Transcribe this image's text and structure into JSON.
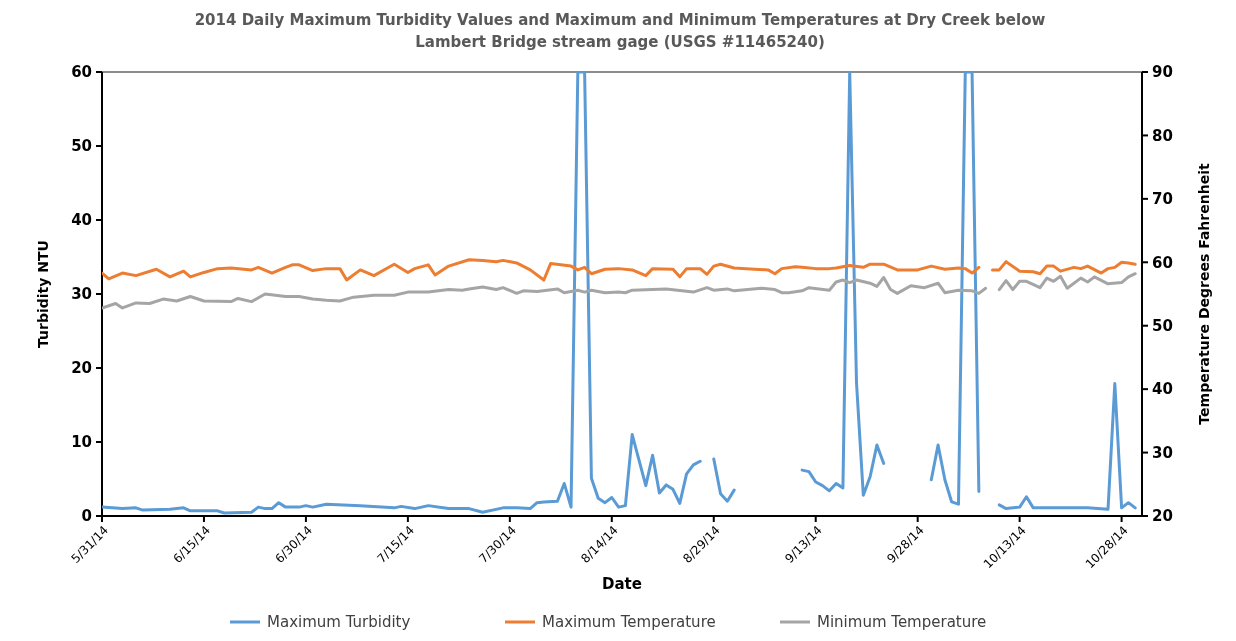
{
  "chart_data": {
    "type": "line",
    "title": "2014 Daily Maximum Turbidity Values and Maximum and Minimum Temperatures at Dry Creek below Lambert Bridge stream gage (USGS #11465240)",
    "xlabel": "Date",
    "ylabel": "Turbidity NTU",
    "y2label": "Temperature Degrees Fahrenheit",
    "xlim": [
      "2014-05-31",
      "2014-10-31"
    ],
    "xticks": [
      {
        "value": "2014-05-31",
        "label": "5/31/14"
      },
      {
        "value": "2014-06-15",
        "label": "6/15/14"
      },
      {
        "value": "2014-06-30",
        "label": "6/30/14"
      },
      {
        "value": "2014-07-15",
        "label": "7/15/14"
      },
      {
        "value": "2014-07-30",
        "label": "7/30/14"
      },
      {
        "value": "2014-08-14",
        "label": "8/14/14"
      },
      {
        "value": "2014-08-29",
        "label": "8/29/14"
      },
      {
        "value": "2014-09-13",
        "label": "9/13/14"
      },
      {
        "value": "2014-09-28",
        "label": "9/28/14"
      },
      {
        "value": "2014-10-13",
        "label": "10/13/14"
      },
      {
        "value": "2014-10-28",
        "label": "10/28/14"
      }
    ],
    "ylim": [
      0,
      60
    ],
    "yticks": [
      0,
      10,
      20,
      30,
      40,
      50,
      60
    ],
    "y2lim": [
      20,
      90
    ],
    "y2ticks": [
      20,
      30,
      40,
      50,
      60,
      70,
      80,
      90
    ],
    "legend": "bottom",
    "series": [
      {
        "name": "Maximum Turbidity",
        "color": "#5b9bd5",
        "x": [
          "2014-05-31",
          "2014-06-03",
          "2014-06-05",
          "2014-06-06",
          "2014-06-10",
          "2014-06-12",
          "2014-06-13",
          "2014-06-17",
          "2014-06-18",
          "2014-06-22",
          "2014-06-23",
          "2014-06-24",
          "2014-06-25",
          "2014-06-26",
          "2014-06-27",
          "2014-06-29",
          "2014-06-30",
          "2014-07-01",
          "2014-07-03",
          "2014-07-08",
          "2014-07-13",
          "2014-07-14",
          "2014-07-16",
          "2014-07-18",
          "2014-07-21",
          "2014-07-24",
          "2014-07-26",
          "2014-07-29",
          "2014-07-31",
          "2014-08-02",
          "2014-08-03",
          "2014-08-04",
          "2014-08-06",
          "2014-08-07",
          "2014-08-08",
          "2014-08-09",
          "2014-08-10",
          "2014-08-11",
          "2014-08-12",
          "2014-08-13",
          "2014-08-14",
          "2014-08-15",
          "2014-08-16",
          "2014-08-17",
          "2014-08-19",
          "2014-08-20",
          "2014-08-21",
          "2014-08-22",
          "2014-08-23",
          "2014-08-24",
          "2014-08-25",
          "2014-08-26",
          "2014-08-27",
          "2014-08-28",
          "2014-08-29",
          "2014-08-30",
          "2014-08-31",
          "2014-09-01",
          "2014-09-02",
          "2014-09-11",
          "2014-09-12",
          "2014-09-13",
          "2014-09-14",
          "2014-09-15",
          "2014-09-16",
          "2014-09-17",
          "2014-09-18",
          "2014-09-19",
          "2014-09-20",
          "2014-09-21",
          "2014-09-22",
          "2014-09-23",
          "2014-09-24",
          "2014-09-30",
          "2014-10-01",
          "2014-10-02",
          "2014-10-03",
          "2014-10-04",
          "2014-10-05",
          "2014-10-06",
          "2014-10-07",
          "2014-10-08",
          "2014-10-10",
          "2014-10-11",
          "2014-10-13",
          "2014-10-14",
          "2014-10-15",
          "2014-10-18",
          "2014-10-23",
          "2014-10-26",
          "2014-10-27",
          "2014-10-28",
          "2014-10-29",
          "2014-10-30"
        ],
        "values": [
          1.2,
          1.0,
          1.1,
          0.8,
          0.9,
          1.1,
          0.7,
          0.7,
          0.4,
          0.5,
          1.2,
          1.0,
          1.0,
          1.8,
          1.2,
          1.2,
          1.4,
          1.2,
          1.6,
          1.4,
          1.1,
          1.3,
          1.0,
          1.4,
          1.0,
          1.0,
          0.5,
          1.1,
          1.1,
          1.0,
          1.8,
          1.9,
          2.0,
          4.4,
          1.2,
          60,
          60,
          5.1,
          2.4,
          1.8,
          2.5,
          1.2,
          1.4,
          11.0,
          4.1,
          8.2,
          3.1,
          4.2,
          3.6,
          1.7,
          5.7,
          6.9,
          7.4,
          null,
          7.7,
          3.0,
          2.0,
          3.5,
          null,
          6.2,
          6.0,
          4.6,
          4.1,
          3.4,
          4.4,
          3.8,
          60,
          18.0,
          2.8,
          5.3,
          9.6,
          7.1,
          null,
          4.9,
          9.6,
          4.9,
          1.9,
          1.6,
          60,
          60,
          3.3,
          null,
          1.5,
          1.0,
          1.2,
          2.6,
          1.1,
          1.1,
          1.1,
          0.9,
          17.9,
          1.1,
          1.8,
          1.1
        ]
      },
      {
        "name": "Maximum Temperature",
        "color": "#ed7d31",
        "axis": "y2",
        "x": [
          "2014-05-31",
          "2014-06-01",
          "2014-06-03",
          "2014-06-05",
          "2014-06-08",
          "2014-06-10",
          "2014-06-12",
          "2014-06-13",
          "2014-06-15",
          "2014-06-17",
          "2014-06-19",
          "2014-06-22",
          "2014-06-23",
          "2014-06-25",
          "2014-06-27",
          "2014-06-28",
          "2014-06-29",
          "2014-07-01",
          "2014-07-03",
          "2014-07-05",
          "2014-07-06",
          "2014-07-08",
          "2014-07-10",
          "2014-07-12",
          "2014-07-13",
          "2014-07-15",
          "2014-07-16",
          "2014-07-18",
          "2014-07-19",
          "2014-07-21",
          "2014-07-24",
          "2014-07-26",
          "2014-07-28",
          "2014-07-29",
          "2014-07-31",
          "2014-08-02",
          "2014-08-04",
          "2014-08-05",
          "2014-08-08",
          "2014-08-09",
          "2014-08-10",
          "2014-08-11",
          "2014-08-13",
          "2014-08-15",
          "2014-08-17",
          "2014-08-19",
          "2014-08-20",
          "2014-08-23",
          "2014-08-24",
          "2014-08-25",
          "2014-08-27",
          "2014-08-28",
          "2014-08-29",
          "2014-08-30",
          "2014-09-01",
          "2014-09-04",
          "2014-09-06",
          "2014-09-07",
          "2014-09-08",
          "2014-09-10",
          "2014-09-11",
          "2014-09-13",
          "2014-09-15",
          "2014-09-16",
          "2014-09-18",
          "2014-09-20",
          "2014-09-21",
          "2014-09-23",
          "2014-09-25",
          "2014-09-28",
          "2014-09-30",
          "2014-10-02",
          "2014-10-04",
          "2014-10-05",
          "2014-10-06",
          "2014-10-07",
          "2014-10-08",
          "2014-10-09",
          "2014-10-10",
          "2014-10-11",
          "2014-10-13",
          "2014-10-15",
          "2014-10-16",
          "2014-10-17",
          "2014-10-18",
          "2014-10-19",
          "2014-10-21",
          "2014-10-22",
          "2014-10-23",
          "2014-10-25",
          "2014-10-26",
          "2014-10-27",
          "2014-10-28",
          "2014-10-29",
          "2014-10-30"
        ],
        "values": [
          58.3,
          57.4,
          58.3,
          57.9,
          58.9,
          57.7,
          58.6,
          57.7,
          58.4,
          59.0,
          59.1,
          58.8,
          59.2,
          58.3,
          59.2,
          59.6,
          59.6,
          58.7,
          59.0,
          59.0,
          57.2,
          58.8,
          57.9,
          59.1,
          59.7,
          58.4,
          59.0,
          59.6,
          58.0,
          59.4,
          60.4,
          60.3,
          60.1,
          60.3,
          59.9,
          58.8,
          57.2,
          59.8,
          59.4,
          58.8,
          59.2,
          58.2,
          58.9,
          59.0,
          58.8,
          57.9,
          59.0,
          58.9,
          57.7,
          59.0,
          59.0,
          58.1,
          59.4,
          59.7,
          59.1,
          58.9,
          58.8,
          58.2,
          59.0,
          59.3,
          59.2,
          59.0,
          59.0,
          59.1,
          59.5,
          59.2,
          59.7,
          59.7,
          58.8,
          58.8,
          59.4,
          58.9,
          59.1,
          59.0,
          58.3,
          59.2,
          null,
          58.8,
          58.8,
          60.1,
          58.6,
          58.5,
          58.2,
          59.4,
          59.4,
          58.6,
          59.2,
          59.0,
          59.4,
          58.3,
          59.0,
          59.2,
          60.0,
          59.9,
          59.7
        ]
      },
      {
        "name": "Minimum Temperature",
        "color": "#a5a5a5",
        "axis": "y2",
        "x": [
          "2014-05-31",
          "2014-06-02",
          "2014-06-03",
          "2014-06-05",
          "2014-06-07",
          "2014-06-09",
          "2014-06-11",
          "2014-06-13",
          "2014-06-15",
          "2014-06-19",
          "2014-06-20",
          "2014-06-22",
          "2014-06-24",
          "2014-06-27",
          "2014-06-29",
          "2014-07-01",
          "2014-07-03",
          "2014-07-05",
          "2014-07-07",
          "2014-07-10",
          "2014-07-13",
          "2014-07-15",
          "2014-07-18",
          "2014-07-21",
          "2014-07-23",
          "2014-07-24",
          "2014-07-26",
          "2014-07-28",
          "2014-07-29",
          "2014-07-31",
          "2014-08-01",
          "2014-08-03",
          "2014-08-06",
          "2014-08-07",
          "2014-08-09",
          "2014-08-10",
          "2014-08-11",
          "2014-08-13",
          "2014-08-15",
          "2014-08-16",
          "2014-08-17",
          "2014-08-22",
          "2014-08-26",
          "2014-08-28",
          "2014-08-29",
          "2014-08-31",
          "2014-09-01",
          "2014-09-05",
          "2014-09-07",
          "2014-09-08",
          "2014-09-09",
          "2014-09-11",
          "2014-09-12",
          "2014-09-15",
          "2014-09-16",
          "2014-09-17",
          "2014-09-18",
          "2014-09-19",
          "2014-09-21",
          "2014-09-22",
          "2014-09-23",
          "2014-09-24",
          "2014-09-25",
          "2014-09-27",
          "2014-09-29",
          "2014-10-01",
          "2014-10-02",
          "2014-10-04",
          "2014-10-06",
          "2014-10-07",
          "2014-10-08",
          "2014-10-09",
          "2014-10-10",
          "2014-10-11",
          "2014-10-12",
          "2014-10-13",
          "2014-10-14",
          "2014-10-16",
          "2014-10-17",
          "2014-10-18",
          "2014-10-19",
          "2014-10-20",
          "2014-10-22",
          "2014-10-23",
          "2014-10-24",
          "2014-10-26",
          "2014-10-28",
          "2014-10-29",
          "2014-10-30"
        ],
        "values": [
          52.8,
          53.5,
          52.8,
          53.6,
          53.5,
          54.2,
          53.9,
          54.6,
          53.9,
          53.8,
          54.3,
          53.8,
          55.0,
          54.6,
          54.6,
          54.2,
          54.0,
          53.9,
          54.5,
          54.8,
          54.8,
          55.3,
          55.3,
          55.7,
          55.6,
          55.8,
          56.1,
          55.7,
          56.0,
          55.1,
          55.5,
          55.4,
          55.8,
          55.2,
          55.6,
          55.3,
          55.6,
          55.2,
          55.3,
          55.2,
          55.6,
          55.8,
          55.3,
          56.0,
          55.6,
          55.8,
          55.5,
          55.9,
          55.7,
          55.2,
          55.2,
          55.5,
          56.0,
          55.6,
          56.9,
          57.2,
          56.8,
          57.2,
          56.7,
          56.2,
          57.6,
          55.7,
          55.1,
          56.3,
          56.0,
          56.7,
          55.2,
          55.6,
          55.5,
          55.1,
          55.9,
          null,
          55.7,
          57.1,
          55.7,
          57.0,
          57.0,
          56.0,
          57.5,
          57.0,
          57.8,
          55.9,
          57.5,
          56.9,
          57.7,
          56.6,
          56.8,
          57.7,
          58.2
        ]
      }
    ]
  }
}
